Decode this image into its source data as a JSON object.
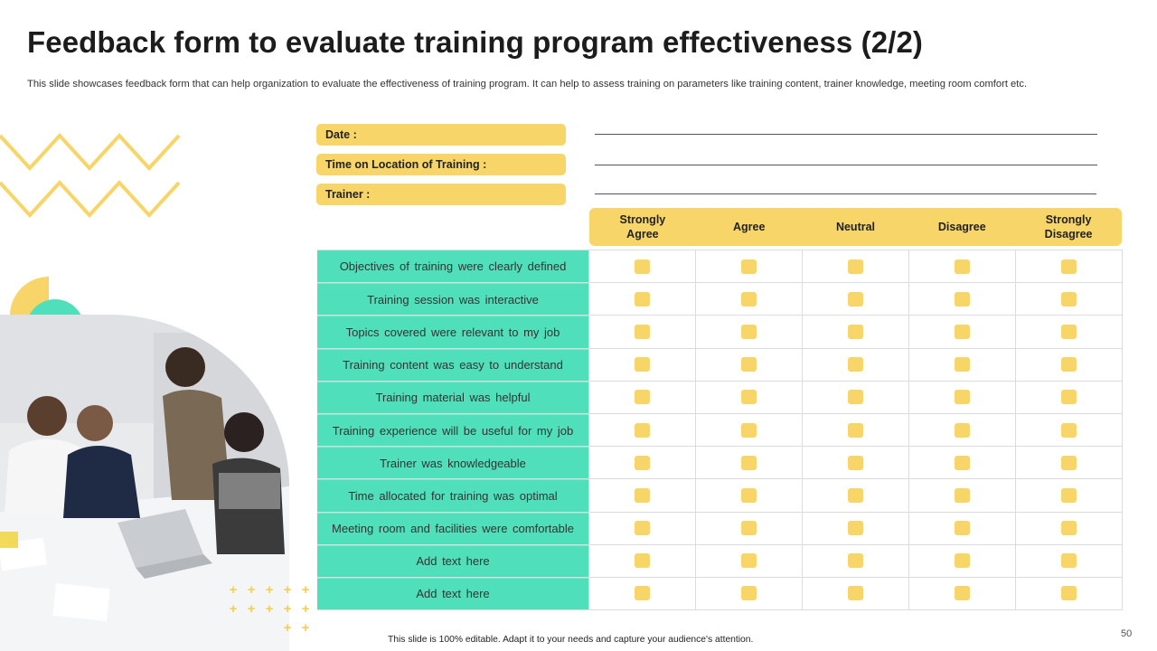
{
  "title": "Feedback form to evaluate training program effectiveness (2/2)",
  "subtitle": "This slide showcases feedback form that can help organization to evaluate the effectiveness of training program. It can help to assess training on parameters like training content, trainer knowledge, meeting room comfort etc.",
  "info_fields": [
    {
      "label": "Date :"
    },
    {
      "label": "Time on Location of Training :"
    },
    {
      "label": "Trainer :"
    }
  ],
  "rating_options": [
    "Strongly\nAgree",
    "Agree",
    "Neutral",
    "Disagree",
    "Strongly\nDisagree"
  ],
  "questions": [
    "Objectives of training were clearly defined",
    "Training session was interactive",
    "Topics covered were relevant to my job",
    "Training content was easy to understand",
    "Training material was helpful",
    "Training experience will be useful for my job",
    "Trainer was knowledgeable",
    "Time allocated for training was optimal",
    "Meeting room and facilities were comfortable",
    "Add text here",
    "Add text here"
  ],
  "footer": "This slide is 100% editable. Adapt it to your needs and capture your audience's attention.",
  "page_number": "50",
  "colors": {
    "accent_yellow": "#f8d568",
    "accent_teal": "#4fe0bb"
  },
  "decorations": {
    "image": "team-meeting-photo",
    "pattern": "zigzag-lines",
    "plus-pattern": "plus-signs"
  }
}
